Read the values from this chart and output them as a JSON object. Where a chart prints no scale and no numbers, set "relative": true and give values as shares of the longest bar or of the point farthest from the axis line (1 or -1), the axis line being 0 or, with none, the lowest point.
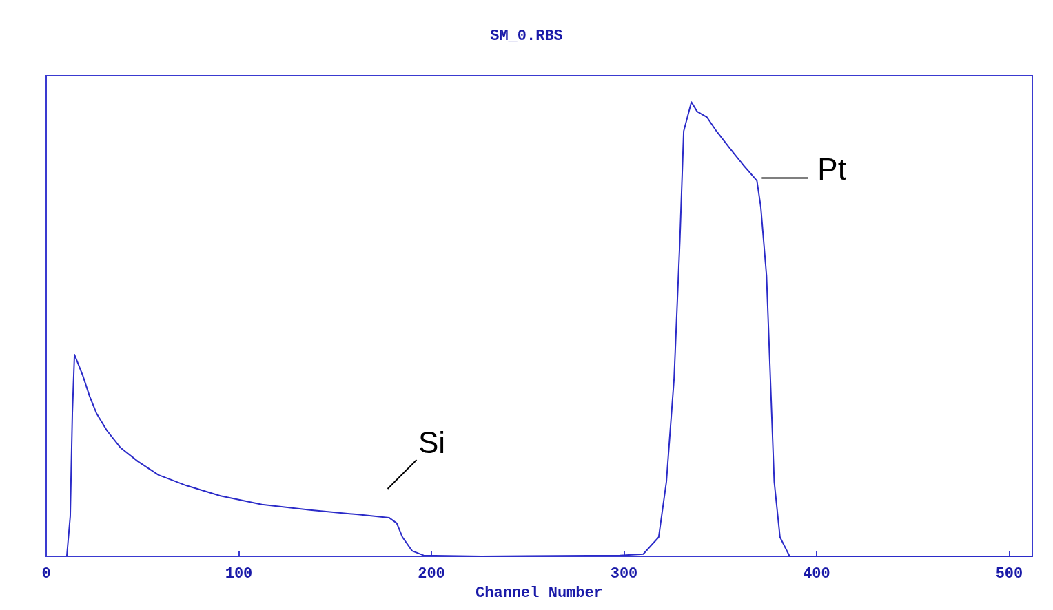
{
  "chart_data": {
    "type": "line",
    "title": "SM_0.RBS",
    "xlabel": "Channel Number",
    "relative": true,
    "xlim": [
      0,
      512
    ],
    "xticks": [
      0,
      100,
      200,
      300,
      400,
      500
    ],
    "grid": false,
    "marker": "none",
    "line_style": "solid",
    "annotations": [
      {
        "text": "Si",
        "x": 178,
        "y": 0.085
      },
      {
        "text": "Pt",
        "x": 369,
        "y": 0.827
      }
    ],
    "series": [
      {
        "color": "#2b2bc8",
        "x": [
          10.7,
          12.5,
          13.6,
          14.7,
          16.1,
          19,
          22.5,
          26.1,
          31.5,
          38.6,
          47.6,
          58.3,
          72.6,
          90.5,
          112,
          137,
          162,
          178,
          182,
          185,
          190,
          196,
          226,
          298,
          310,
          318,
          322,
          326,
          329,
          331,
          335,
          338,
          343,
          348,
          355,
          362,
          369,
          371,
          374,
          376,
          378,
          381,
          386,
          512
        ],
        "values": [
          0,
          0.088,
          0.315,
          0.444,
          0.429,
          0.398,
          0.353,
          0.315,
          0.277,
          0.239,
          0.209,
          0.179,
          0.156,
          0.133,
          0.114,
          0.102,
          0.092,
          0.085,
          0.073,
          0.042,
          0.012,
          0.002,
          0,
          0.002,
          0.005,
          0.042,
          0.164,
          0.391,
          0.694,
          0.936,
          1.0,
          0.979,
          0.967,
          0.936,
          0.898,
          0.861,
          0.827,
          0.77,
          0.618,
          0.391,
          0.164,
          0.042,
          0,
          0
        ]
      }
    ]
  }
}
